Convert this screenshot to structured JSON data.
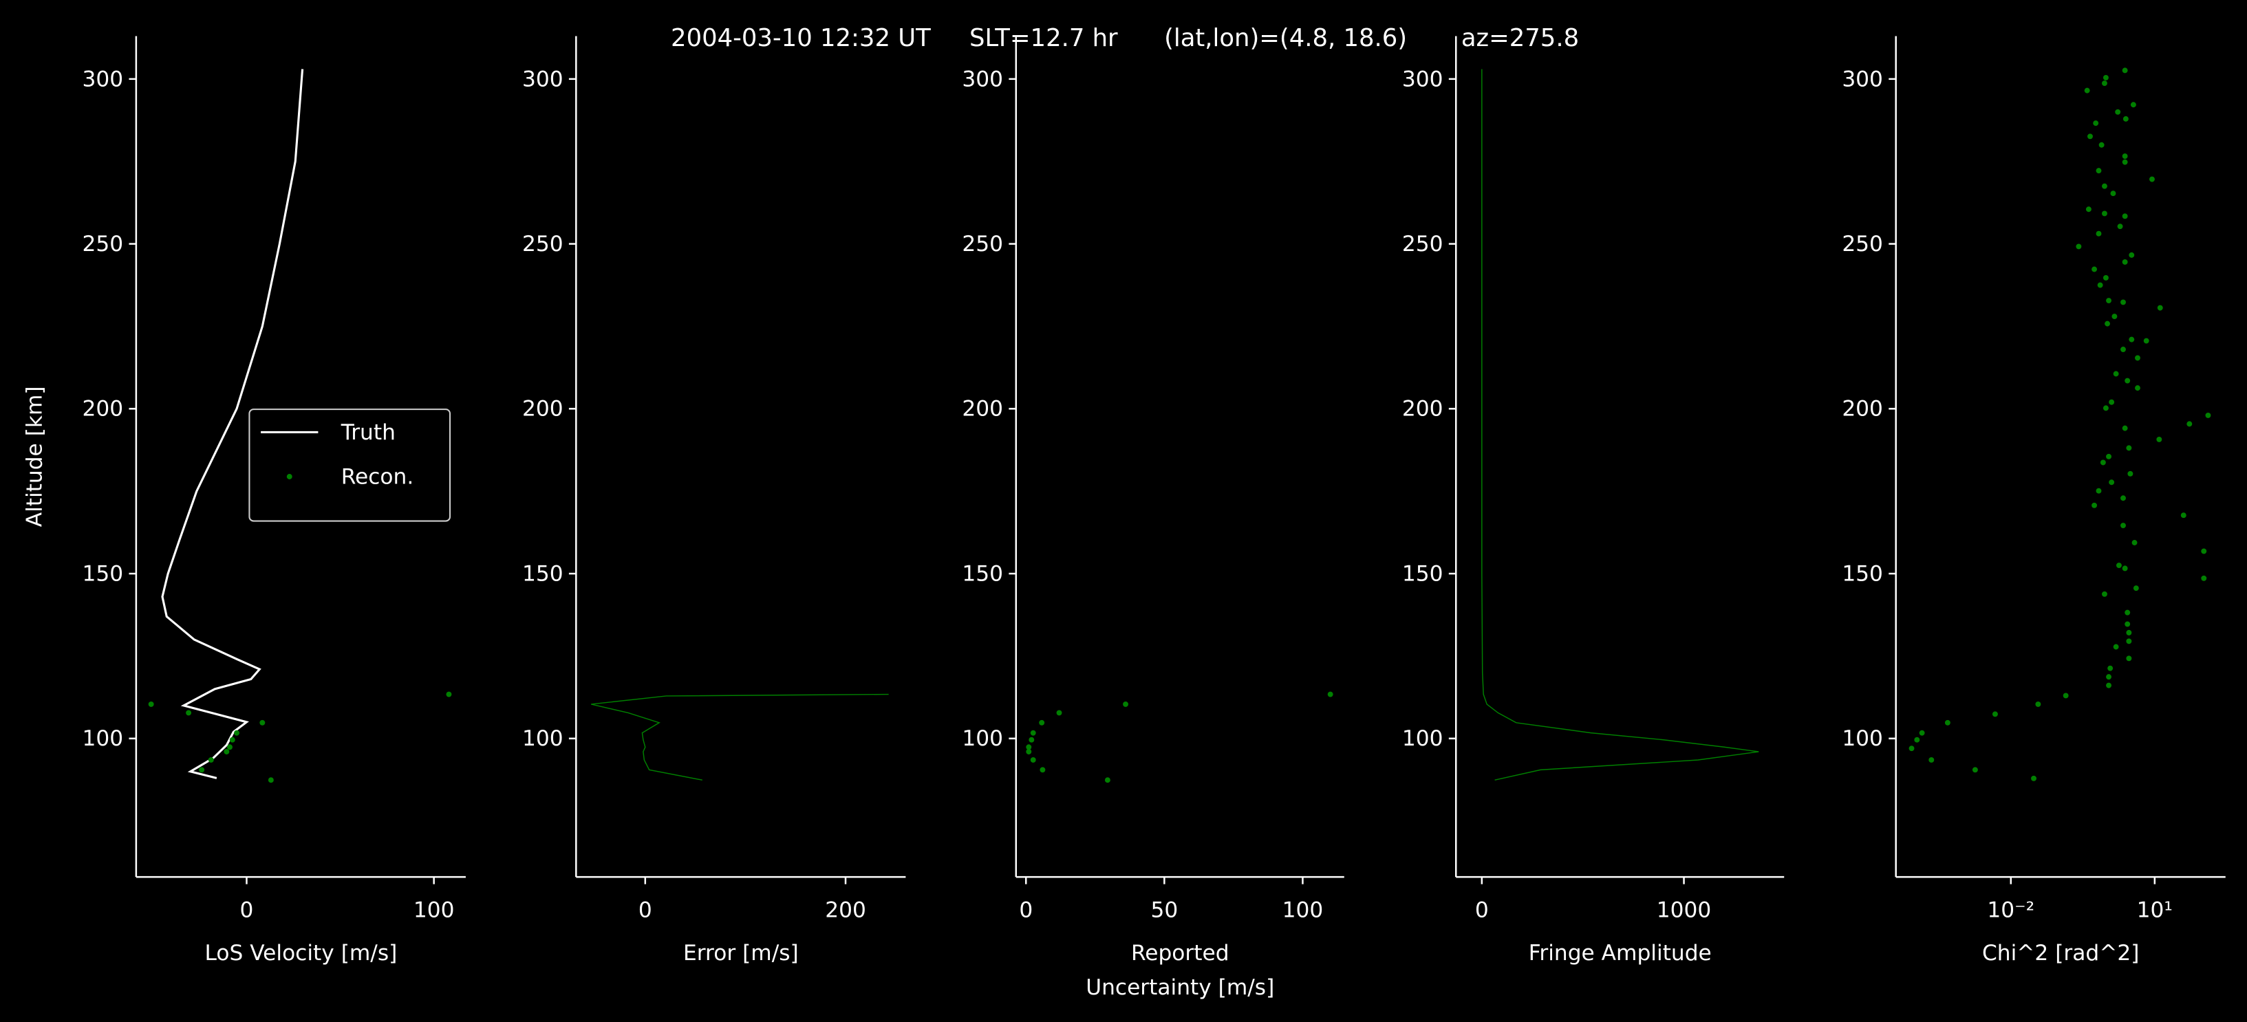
{
  "title": "2004-03-10 12:32 UT     SLT=12.7 hr      (lat,lon)=(4.8, 18.6)       az=275.8",
  "chart_data": [
    {
      "type": "line",
      "ylabel": "Altitude [km]",
      "xlabel": "LoS Velocity [m/s]",
      "xlim": [
        -59,
        117
      ],
      "xticks": [
        0,
        100
      ],
      "ylim": [
        58,
        313
      ],
      "yticks": [
        100,
        150,
        200,
        250,
        300
      ],
      "legend": "center right",
      "series": [
        {
          "name": "Truth",
          "type": "line",
          "color": "#ffffff",
          "x": [
            29.8,
            26,
            17.6,
            8.4,
            -5.3,
            -26.7,
            -36,
            -42,
            -45,
            -42.7,
            -28,
            -5,
            6.9,
            2.3,
            -17,
            -33.6,
            0,
            -7,
            -10.7,
            -18,
            -30,
            -16
          ],
          "values": [
            303,
            275,
            250,
            225,
            200,
            175,
            160,
            150,
            143,
            137,
            130,
            124,
            121,
            118,
            115,
            110,
            105,
            102,
            98,
            94,
            90,
            88
          ]
        },
        {
          "name": "Recon.",
          "type": "scatter",
          "color": "#008000",
          "x": [
            108,
            -51,
            -31,
            8.4,
            -5.3,
            -7.6,
            -9,
            -10.7,
            -19,
            -24,
            13
          ],
          "values": [
            113.4,
            110.4,
            107.8,
            104.8,
            101.7,
            99.6,
            97.4,
            96,
            93.5,
            90.5,
            87.4
          ]
        }
      ]
    },
    {
      "type": "line",
      "xlabel": "Error [m/s]",
      "xlim": [
        -69,
        260
      ],
      "xticks": [
        0,
        200
      ],
      "ylim": [
        58,
        313
      ],
      "yticks": [
        100,
        150,
        200,
        250,
        300
      ],
      "series": [
        {
          "color": "#008000",
          "x": [
            243,
            21,
            -54,
            -17,
            14,
            -3,
            -2,
            0,
            -2,
            -1,
            4,
            57
          ],
          "values": [
            113.4,
            112.9,
            110.4,
            107.8,
            104.8,
            101.7,
            99.6,
            97.4,
            96,
            93.5,
            90.5,
            87.4
          ]
        }
      ]
    },
    {
      "type": "scatter",
      "xlabel": [
        "Reported",
        "Uncertainty [m/s]"
      ],
      "xlim": [
        -3.6,
        115
      ],
      "xticks": [
        0,
        50,
        100
      ],
      "ylim": [
        58,
        313
      ],
      "yticks": [
        100,
        150,
        200,
        250,
        300
      ],
      "series": [
        {
          "color": "#008000",
          "x": [
            110,
            36,
            12,
            5.7,
            2.6,
            2,
            1,
            1,
            2.6,
            6,
            29.5
          ],
          "values": [
            113.4,
            110.4,
            107.8,
            104.8,
            101.7,
            99.6,
            97.4,
            96,
            93.5,
            90.5,
            87.4
          ]
        }
      ]
    },
    {
      "type": "line",
      "xlabel": "Fringe Amplitude",
      "xlim": [
        -128,
        1496
      ],
      "xticks": [
        0,
        1000
      ],
      "ylim": [
        58,
        313
      ],
      "yticks": [
        100,
        150,
        200,
        250,
        300
      ],
      "series": [
        {
          "color": "#008000",
          "x": [
            0,
            0,
            0,
            0,
            3,
            8,
            25,
            80,
            170,
            540,
            900,
            1200,
            1370,
            1070,
            290,
            64
          ],
          "values": [
            303,
            250,
            200,
            150,
            120,
            113.4,
            110.4,
            107.8,
            104.8,
            101.7,
            99.6,
            97.4,
            96,
            93.5,
            90.5,
            87.4
          ]
        }
      ]
    },
    {
      "type": "scatter",
      "xlabel": "Chi^2 [rad^2]",
      "xscale": "log",
      "xlim": [
        4e-05,
        300
      ],
      "xticks": [
        {
          "value": 0.01,
          "label": "10⁻²"
        },
        {
          "value": 10,
          "label": "10¹"
        }
      ],
      "ylim": [
        58,
        313
      ],
      "yticks": [
        100,
        150,
        200,
        250,
        300
      ],
      "series": [
        {
          "color": "#008000",
          "x": [
            2.4,
            0.96,
            0.9,
            3.6,
            0.39,
            1.7,
            0.59,
            2.5,
            0.45,
            0.78,
            2.4,
            2.4,
            0.68,
            8.8,
            0.9,
            1.36,
            0.42,
            0.9,
            2.4,
            1.9,
            0.68,
            0.26,
            3.3,
            2.4,
            0.55,
            0.96,
            0.73,
            2.2,
            1.1,
            13,
            1.45,
            6.7,
            1.03,
            3.3,
            2.2,
            4.4,
            1.56,
            2.7,
            4.4,
            1.26,
            0.96,
            130,
            53,
            12.4,
            2.4,
            1.1,
            2.9,
            0.84,
            3.1,
            0.68,
            1.26,
            0.55,
            2.2,
            40,
            2.2,
            3.8,
            106,
            2.4,
            1.8,
            4.1,
            0.9,
            106,
            1.56,
            2.7,
            2.7,
            2.9,
            2.9,
            2.9,
            1.18,
            1.1,
            1.1,
            0.14,
            0.037,
            0.0047,
            0.00048,
            0.00014,
            0.00011,
            8.5e-05,
            0.00022,
            0.0018,
            0.03
          ],
          "values": [
            302.6,
            300.4,
            298.7,
            292.2,
            296.5,
            290,
            286.6,
            287.9,
            282.6,
            280,
            276.6,
            274.8,
            272.2,
            269.6,
            267.5,
            265.3,
            260.5,
            259.2,
            258.4,
            255.3,
            253.1,
            249.2,
            246.6,
            244.5,
            242.3,
            239.7,
            237.5,
            232.3,
            232.8,
            230.6,
            228,
            220.6,
            225.8,
            221,
            218,
            215.4,
            210.6,
            208.5,
            206.3,
            202,
            200.2,
            198,
            195.4,
            190.7,
            194.1,
            185.5,
            188.1,
            183.7,
            180.3,
            175.1,
            177.7,
            170.7,
            172.9,
            167.7,
            164.6,
            159.4,
            156.8,
            151.6,
            152.5,
            145.6,
            143.8,
            148.6,
            127.8,
            138.2,
            134.7,
            132.1,
            129.5,
            124.3,
            121.3,
            118.7,
            116.1,
            113,
            110.4,
            107.4,
            104.8,
            101.7,
            99.6,
            97,
            93.5,
            90.5,
            87.9
          ]
        }
      ]
    }
  ]
}
